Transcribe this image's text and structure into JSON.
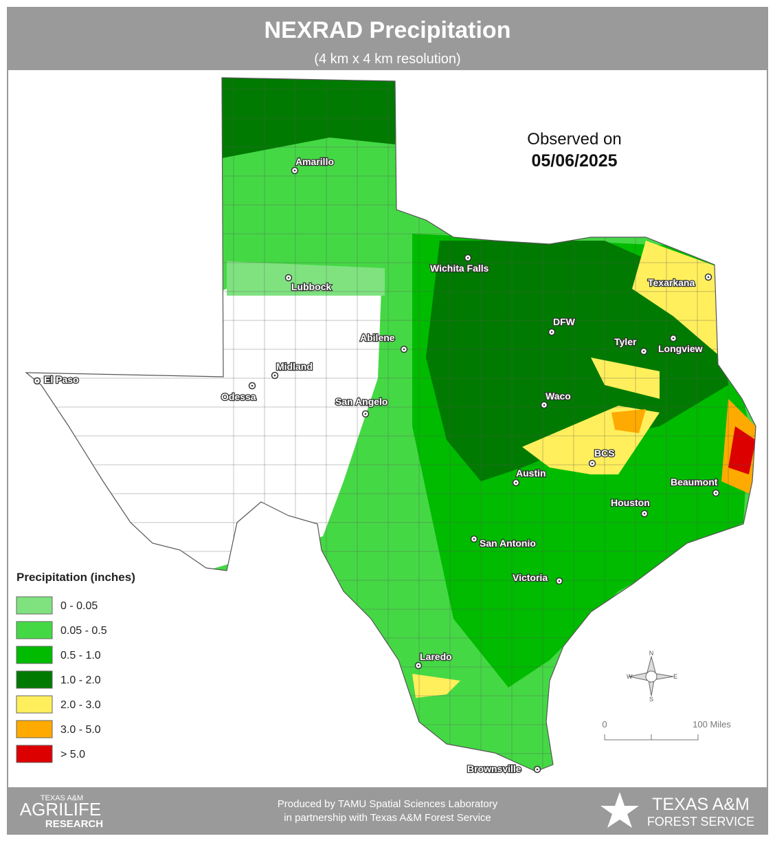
{
  "header": {
    "title": "NEXRAD Precipitation",
    "subtitle": "(4 km x 4 km resolution)"
  },
  "observed": {
    "label": "Observed on",
    "date": "05/06/2025"
  },
  "cities": [
    "Amarillo",
    "Lubbock",
    "Wichita Falls",
    "Texarkana",
    "DFW",
    "Tyler",
    "Longview",
    "Abilene",
    "Midland",
    "Odessa",
    "El Paso",
    "San Angelo",
    "Waco",
    "BCS",
    "Austin",
    "Beaumont",
    "Houston",
    "San Antonio",
    "Victoria",
    "Laredo",
    "Brownsville"
  ],
  "legend": {
    "title": "Precipitation (inches)",
    "items": [
      {
        "label": "0 - 0.05",
        "color": "#7fe27f"
      },
      {
        "label": "0.05 - 0.5",
        "color": "#45d845"
      },
      {
        "label": "0.5 - 1.0",
        "color": "#00bb00"
      },
      {
        "label": "1.0 - 2.0",
        "color": "#007a00"
      },
      {
        "label": "2.0 - 3.0",
        "color": "#ffef5c"
      },
      {
        "label": "3.0 - 5.0",
        "color": "#ffaa00"
      },
      {
        "label": "> 5.0",
        "color": "#dd0000"
      }
    ]
  },
  "compass": {
    "n": "N",
    "e": "E",
    "s": "S",
    "w": "W"
  },
  "scale": {
    "start": "0",
    "end": "100 Miles"
  },
  "footer": {
    "line1": "Produced by TAMU Spatial Sciences Laboratory",
    "line2": "in partnership with Texas A&M Forest Service",
    "left_logo": [
      "TEXAS A&M",
      "AGRILIFE",
      "RESEARCH"
    ],
    "right_logo": [
      "TEXAS A&M",
      "FOREST SERVICE"
    ]
  }
}
